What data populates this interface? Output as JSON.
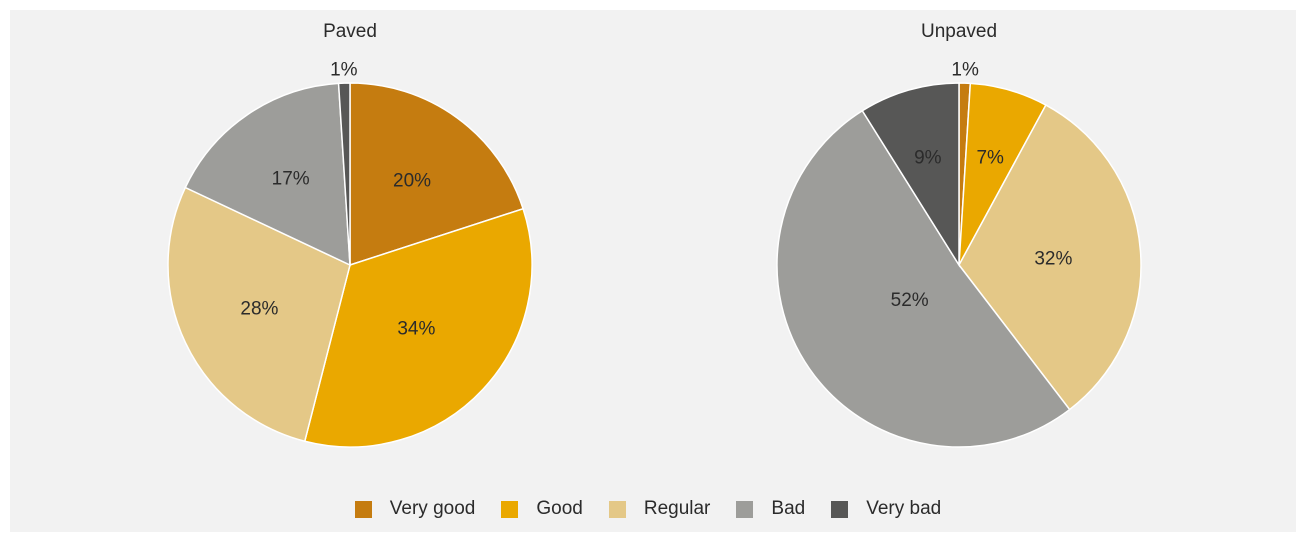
{
  "chart_data": [
    {
      "type": "pie",
      "title": "Paved",
      "categories": [
        "Very good",
        "Good",
        "Regular",
        "Bad",
        "Very bad"
      ],
      "values": [
        20,
        34,
        28,
        17,
        1
      ],
      "labels": [
        "20%",
        "34%",
        "28%",
        "17%",
        "1%"
      ]
    },
    {
      "type": "pie",
      "title": "Unpaved",
      "categories": [
        "Very good",
        "Good",
        "Regular",
        "Bad",
        "Very bad"
      ],
      "values": [
        1,
        7,
        32,
        52,
        9
      ],
      "labels": [
        "1%",
        "7%",
        "32%",
        "52%",
        "9%"
      ]
    }
  ],
  "legend": {
    "placement": "bottom",
    "items": [
      {
        "label": "Very good",
        "color": "#c57c10"
      },
      {
        "label": "Good",
        "color": "#eaa800"
      },
      {
        "label": "Regular",
        "color": "#e4c887"
      },
      {
        "label": "Bad",
        "color": "#9d9d9a"
      },
      {
        "label": "Very bad",
        "color": "#575756"
      }
    ]
  }
}
